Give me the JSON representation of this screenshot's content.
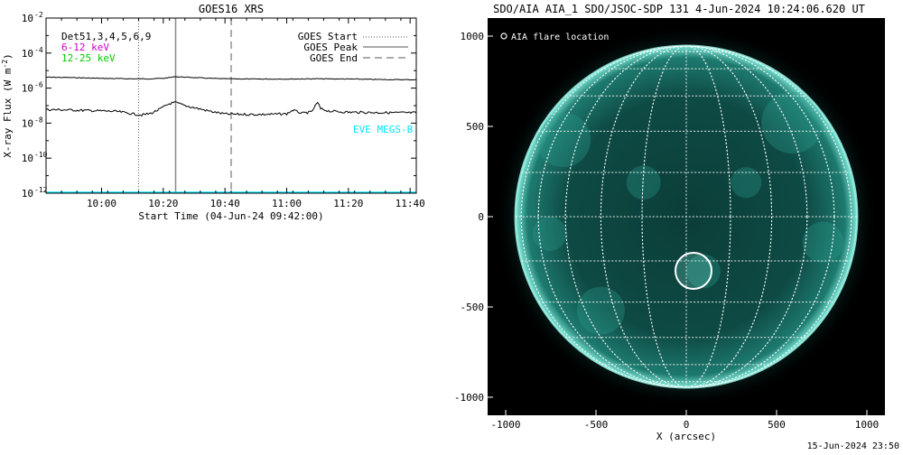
{
  "left_panel": {
    "title": "GOES16 XRS",
    "xlabel": "Start Time (04-Jun-24 09:42:00)",
    "ylabel_main": "X-ray Flux (W m",
    "ylabel_sup": "-2",
    "ylabel_close": ")",
    "legend_left": [
      {
        "label": "Det51,3,4,5,6,9",
        "color": "#000000"
      },
      {
        "label": "6-12 keV",
        "color": "#cc00cc"
      },
      {
        "label": "12-25 keV",
        "color": "#00cc00"
      }
    ],
    "legend_right": [
      {
        "label": "GOES Start",
        "style": "dotted"
      },
      {
        "label": "GOES Peak",
        "style": "solid"
      },
      {
        "label": "GOES End",
        "style": "dashed"
      }
    ],
    "eve_label": "EVE MEGS-B",
    "eve_color": "#00e5ff"
  },
  "right_panel": {
    "title": "SDO/AIA AIA_1 SDO/JSOC-SDP 131  4-Jun-2024 10:24:06.620 UT",
    "flare_legend": "AIA flare location",
    "xlabel": "X (arcsec)",
    "footer": "15-Jun-2024 23:50",
    "disk_color": "#0e4a44",
    "limb_color": "#7fe8d8"
  },
  "chart_data": [
    {
      "type": "line",
      "title": "GOES16 XRS",
      "xlabel": "Start Time (04-Jun-24 09:42:00)",
      "ylabel": "X-ray Flux (W m^-2)",
      "y_scale": "log",
      "xlim": [
        "09:42",
        "11:42"
      ],
      "ylim": [
        1e-12,
        0.01
      ],
      "x_ticks": [
        "10:00",
        "10:20",
        "10:40",
        "11:00",
        "11:20",
        "11:40"
      ],
      "y_ticks": [
        "10^-12",
        "10^-10",
        "10^-8",
        "10^-6",
        "10^-4",
        "10^-2"
      ],
      "series": [
        {
          "name": "",
          "color": "#000000",
          "x": [
            "09:42",
            "09:50",
            "10:00",
            "10:10",
            "10:15",
            "10:20",
            "10:24",
            "10:30",
            "10:35",
            "10:40",
            "10:50",
            "11:00",
            "11:10",
            "11:20",
            "11:30",
            "11:42"
          ],
          "y": [
            4.2e-06,
            4e-06,
            3.6e-06,
            3.4e-06,
            3.4e-06,
            3.6e-06,
            4.5e-06,
            4e-06,
            3.6e-06,
            3.4e-06,
            3.3e-06,
            3.3e-06,
            3.4e-06,
            3.3e-06,
            3.1e-06,
            3e-06
          ]
        },
        {
          "name": "",
          "color": "#000000",
          "x": [
            "09:42",
            "09:50",
            "10:00",
            "10:05",
            "10:10",
            "10:13",
            "10:16",
            "10:19",
            "10:22",
            "10:24",
            "10:27",
            "10:31",
            "10:35",
            "10:40",
            "10:45",
            "10:50",
            "10:55",
            "11:00",
            "11:02",
            "11:05",
            "11:08",
            "11:10",
            "11:11",
            "11:14",
            "11:20",
            "11:30",
            "11:42"
          ],
          "y": [
            6e-08,
            5.6e-08,
            5e-08,
            4.6e-08,
            3.4e-08,
            2.9e-08,
            3.6e-08,
            6.5e-08,
            1.3e-07,
            1.5e-07,
            1e-07,
            7e-08,
            4.8e-08,
            3.3e-08,
            3.2e-08,
            3.1e-08,
            3.2e-08,
            3.4e-08,
            5.5e-08,
            3.6e-08,
            4.3e-08,
            1.5e-07,
            6.5e-08,
            4.8e-08,
            4.2e-08,
            4e-08,
            3.9e-08
          ]
        },
        {
          "name": "EVE MEGS-B",
          "color": "#00e5ff",
          "x": [
            "09:42",
            "11:42"
          ],
          "y": [
            1.1e-12,
            1.1e-12
          ]
        }
      ],
      "markers": [
        {
          "name": "GOES Start",
          "time": "10:12",
          "style": "dotted"
        },
        {
          "name": "GOES Peak",
          "time": "10:24",
          "style": "solid"
        },
        {
          "name": "GOES End",
          "time": "10:42",
          "style": "dashed"
        }
      ]
    },
    {
      "type": "scatter",
      "title": "SDO/AIA AIA_1 SDO/JSOC-SDP 131  4-Jun-2024 10:24:06.620 UT",
      "xlabel": "X (arcsec)",
      "ylabel": "",
      "xlim": [
        -1100,
        1100
      ],
      "ylim": [
        -1100,
        1100
      ],
      "x_ticks": [
        -1000,
        -500,
        0,
        500,
        1000
      ],
      "y_ticks": [
        -1000,
        -500,
        0,
        500,
        1000
      ],
      "solar_radius_arcsec": 946,
      "grid_spacing_deg": 15,
      "series": [
        {
          "name": "AIA flare location",
          "x": [
            40
          ],
          "y": [
            -300
          ]
        }
      ]
    }
  ]
}
